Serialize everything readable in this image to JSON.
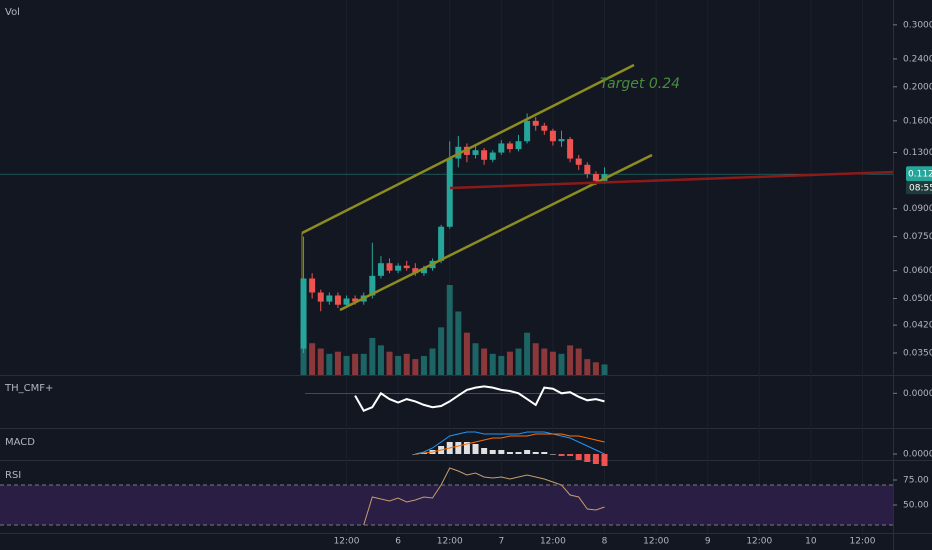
{
  "chart_data": [
    {
      "type": "candlestick",
      "title": "Vol",
      "annotation": "Target 0.24",
      "log_scale": true,
      "up_color": "#26a69a",
      "down_color": "#ef5350",
      "xlim": [
        -92.6,
        115.1
      ],
      "xticks": [
        {
          "value": -12,
          "label": "12:00"
        },
        {
          "value": 0,
          "label": "6"
        },
        {
          "value": 12,
          "label": "12:00"
        },
        {
          "value": 24,
          "label": "7"
        },
        {
          "value": 36,
          "label": "12:00"
        },
        {
          "value": 48,
          "label": "8"
        },
        {
          "value": 60,
          "label": "12:00"
        },
        {
          "value": 72,
          "label": "9"
        },
        {
          "value": 84,
          "label": "12:00"
        },
        {
          "value": 96,
          "label": "10"
        },
        {
          "value": 108,
          "label": "12:00"
        }
      ],
      "ylim": [
        0.0303,
        0.353
      ],
      "yticks": [
        {
          "value": 0.3,
          "label": "0.30000"
        },
        {
          "value": 0.24,
          "label": "0.24000"
        },
        {
          "value": 0.2,
          "label": "0.20000"
        },
        {
          "value": 0.16,
          "label": "0.16000"
        },
        {
          "value": 0.13,
          "label": "0.13000"
        },
        {
          "value": 0.09,
          "label": "0.09000"
        },
        {
          "value": 0.075,
          "label": "0.07500"
        },
        {
          "value": 0.06,
          "label": "0.06000"
        },
        {
          "value": 0.05,
          "label": "0.05000"
        },
        {
          "value": 0.042,
          "label": "0.04200"
        },
        {
          "value": 0.035,
          "label": "0.03500"
        }
      ],
      "last_price": 0.11281,
      "countdown": "08:55",
      "x": [
        -22,
        -20,
        -18,
        -16,
        -14,
        -12,
        -10,
        -8,
        -6,
        -4,
        -2,
        0,
        2,
        4,
        6,
        8,
        10,
        12,
        14,
        16,
        18,
        20,
        22,
        24,
        26,
        28,
        30,
        32,
        34,
        36,
        38,
        40,
        42,
        44,
        46,
        48
      ],
      "open": [
        0.036,
        0.057,
        0.052,
        0.049,
        0.051,
        0.048,
        0.05,
        0.049,
        0.051,
        0.058,
        0.063,
        0.06,
        0.062,
        0.061,
        0.059,
        0.061,
        0.064,
        0.08,
        0.125,
        0.135,
        0.128,
        0.132,
        0.124,
        0.13,
        0.138,
        0.133,
        0.14,
        0.16,
        0.155,
        0.15,
        0.14,
        0.142,
        0.125,
        0.12,
        0.113,
        0.108
      ],
      "high": [
        0.075,
        0.059,
        0.053,
        0.052,
        0.052,
        0.051,
        0.051,
        0.052,
        0.072,
        0.066,
        0.065,
        0.063,
        0.064,
        0.063,
        0.062,
        0.065,
        0.081,
        0.14,
        0.145,
        0.138,
        0.136,
        0.134,
        0.132,
        0.141,
        0.14,
        0.146,
        0.168,
        0.164,
        0.158,
        0.152,
        0.15,
        0.144,
        0.128,
        0.122,
        0.115,
        0.118
      ],
      "low": [
        0.035,
        0.05,
        0.046,
        0.048,
        0.047,
        0.047,
        0.048,
        0.048,
        0.05,
        0.057,
        0.059,
        0.059,
        0.06,
        0.058,
        0.058,
        0.06,
        0.063,
        0.079,
        0.118,
        0.122,
        0.125,
        0.12,
        0.122,
        0.128,
        0.13,
        0.131,
        0.138,
        0.15,
        0.146,
        0.136,
        0.135,
        0.122,
        0.116,
        0.11,
        0.105,
        0.106
      ],
      "close": [
        0.057,
        0.052,
        0.049,
        0.051,
        0.048,
        0.05,
        0.049,
        0.051,
        0.058,
        0.063,
        0.06,
        0.062,
        0.061,
        0.059,
        0.061,
        0.064,
        0.08,
        0.125,
        0.135,
        0.128,
        0.132,
        0.124,
        0.13,
        0.138,
        0.133,
        0.14,
        0.16,
        0.155,
        0.15,
        0.14,
        0.142,
        0.125,
        0.12,
        0.113,
        0.108,
        0.11281
      ],
      "volume": [
        40,
        30,
        25,
        20,
        22,
        18,
        20,
        20,
        35,
        28,
        22,
        18,
        20,
        15,
        18,
        25,
        45,
        85,
        60,
        40,
        30,
        25,
        20,
        18,
        22,
        25,
        40,
        30,
        25,
        22,
        20,
        28,
        25,
        15,
        12,
        10
      ]
    },
    {
      "type": "line",
      "title": "TH_CMF+",
      "ylim": [
        -0.3,
        0.15
      ],
      "yticks": [
        {
          "value": 0,
          "label": "0.00000"
        }
      ],
      "x": [
        -10,
        -8,
        -6,
        -4,
        -2,
        0,
        2,
        4,
        6,
        8,
        10,
        12,
        14,
        16,
        18,
        20,
        22,
        24,
        26,
        28,
        30,
        32,
        34,
        36,
        38,
        40,
        42,
        44,
        46,
        48
      ],
      "series": [
        {
          "color": "#ffffff",
          "values": [
            -0.02,
            -0.15,
            -0.12,
            0.0,
            -0.05,
            -0.08,
            -0.05,
            -0.07,
            -0.1,
            -0.12,
            -0.11,
            -0.07,
            -0.02,
            0.03,
            0.05,
            0.06,
            0.05,
            0.03,
            0.02,
            0.0,
            -0.05,
            -0.1,
            0.05,
            0.04,
            0.0,
            0.01,
            -0.03,
            -0.06,
            -0.05,
            -0.07
          ]
        }
      ]
    },
    {
      "type": "macd",
      "title": "MACD",
      "ylim": [
        -0.003,
        0.012
      ],
      "yticks": [
        {
          "value": 0,
          "label": "0.00000"
        }
      ],
      "x": [
        4,
        6,
        8,
        10,
        12,
        14,
        16,
        18,
        20,
        22,
        24,
        26,
        28,
        30,
        32,
        34,
        36,
        38,
        40,
        42,
        44,
        46,
        48
      ],
      "series": [
        {
          "color": "#2196f3",
          "values": [
            0.0,
            0.001,
            0.003,
            0.006,
            0.009,
            0.01,
            0.011,
            0.011,
            0.01,
            0.01,
            0.01,
            0.01,
            0.01,
            0.011,
            0.011,
            0.011,
            0.01,
            0.009,
            0.008,
            0.006,
            0.004,
            0.002,
            0.0
          ]
        },
        {
          "color": "#ff6d00",
          "values": [
            0.0,
            0.0005,
            0.001,
            0.002,
            0.003,
            0.004,
            0.005,
            0.006,
            0.007,
            0.008,
            0.008,
            0.009,
            0.009,
            0.009,
            0.01,
            0.01,
            0.01,
            0.01,
            0.009,
            0.009,
            0.008,
            0.007,
            0.006
          ]
        }
      ],
      "histogram": [
        0,
        0.0005,
        0.002,
        0.004,
        0.006,
        0.006,
        0.006,
        0.005,
        0.003,
        0.002,
        0.002,
        0.001,
        0.001,
        0.002,
        0.001,
        0.001,
        0,
        -0.001,
        -0.001,
        -0.003,
        -0.004,
        -0.005,
        -0.006
      ]
    },
    {
      "type": "line",
      "title": "RSI",
      "ylim": [
        22,
        92
      ],
      "band": [
        30,
        70
      ],
      "yticks": [
        {
          "value": 75,
          "label": "75.00"
        },
        {
          "value": 50,
          "label": "50.00"
        }
      ],
      "x": [
        -8,
        -6,
        -4,
        -2,
        0,
        2,
        4,
        6,
        8,
        10,
        12,
        14,
        16,
        18,
        20,
        22,
        24,
        26,
        28,
        30,
        32,
        34,
        36,
        38,
        40,
        42,
        44,
        46,
        48
      ],
      "series": [
        {
          "color": "#c69c6d",
          "values": [
            30,
            58,
            56,
            54,
            57,
            53,
            55,
            58,
            57,
            70,
            87,
            84,
            80,
            82,
            78,
            77,
            78,
            76,
            78,
            80,
            78,
            76,
            73,
            70,
            60,
            58,
            46,
            45,
            48
          ]
        }
      ]
    }
  ]
}
